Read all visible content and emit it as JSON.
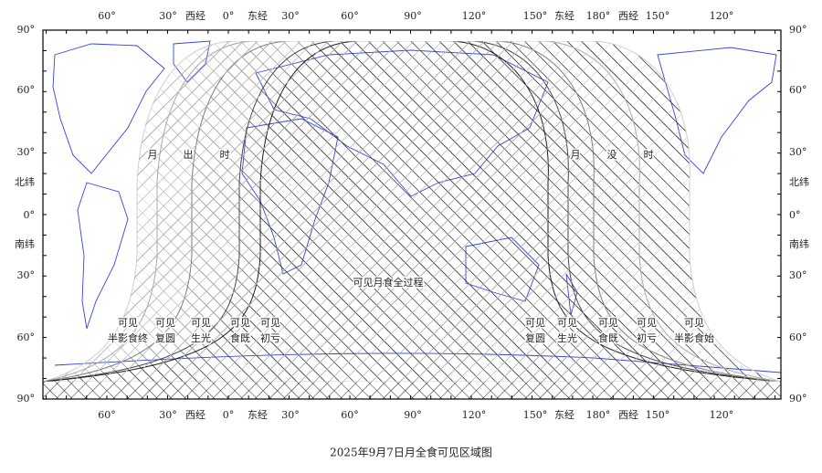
{
  "top_axis": [
    "60°",
    "30°",
    "西经",
    "0°",
    "东经",
    "30°",
    "60°",
    "90°",
    "120°",
    "150°",
    "东经",
    "180°",
    "西经",
    "150°",
    "120°"
  ],
  "bottom_axis": [
    "60°",
    "30°",
    "西经",
    "0°",
    "东经",
    "30°",
    "60°",
    "90°",
    "120°",
    "150°",
    "东经",
    "180°",
    "西经",
    "150°",
    "120°"
  ],
  "left_axis": [
    "90°",
    "60°",
    "30°",
    "北纬",
    "0°",
    "南纬",
    "30°",
    "60°",
    "90°"
  ],
  "right_axis": [
    "90°",
    "60°",
    "30°",
    "北纬",
    "0°",
    "南纬",
    "30°",
    "60°",
    "90°"
  ],
  "moonrise_label": [
    "月",
    "出",
    "时"
  ],
  "moonset_label": [
    "月",
    "没",
    "时"
  ],
  "total_label": "可见月食全过程",
  "left_zone_labels": [
    {
      "line1": "可见",
      "line2": "半影食终"
    },
    {
      "line1": "可见",
      "line2": "复圆"
    },
    {
      "line1": "可见",
      "line2": "生光"
    },
    {
      "line1": "可见",
      "line2": "食既"
    },
    {
      "line1": "可见",
      "line2": "初亏"
    }
  ],
  "right_zone_labels": [
    {
      "line1": "可见",
      "line2": "复圆"
    },
    {
      "line1": "可见",
      "line2": "生光"
    },
    {
      "line1": "可见",
      "line2": "食既"
    },
    {
      "line1": "可见",
      "line2": "初亏"
    },
    {
      "line1": "可见",
      "line2": "半影食始"
    }
  ],
  "title": "2025年9月7日月全食可见区域图"
}
